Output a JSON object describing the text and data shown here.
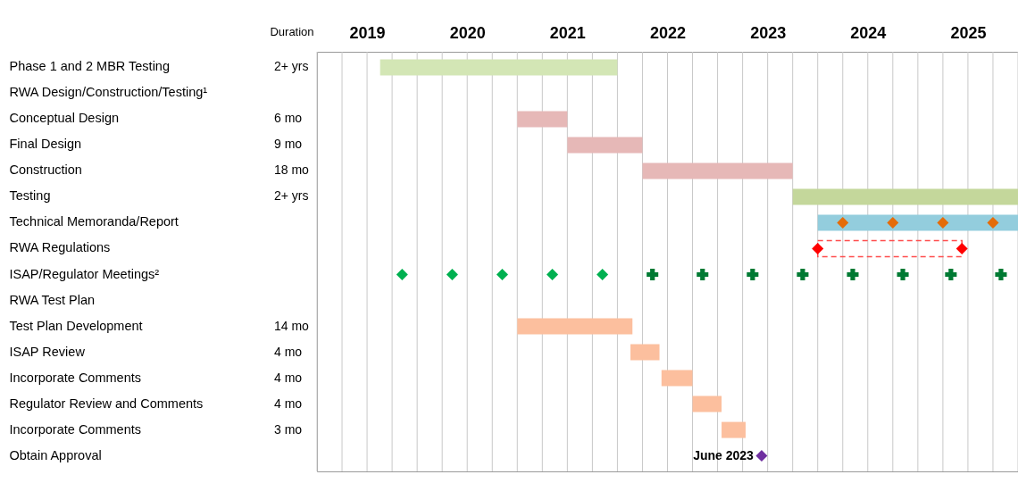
{
  "chart_data": {
    "type": "bar",
    "orientation": "horizontal",
    "categories": [
      "Phase 1 and 2 MBR Testing",
      "RWA Design/Construction/Testing¹",
      "Conceptual Design",
      "Final Design",
      "Construction",
      "Testing",
      "Technical Memoranda/Report",
      "RWA Regulations",
      "ISAP/Regulator Meetings²",
      "RWA Test Plan",
      "Test Plan Development",
      "ISAP Review",
      "Incorporate Comments",
      "Regulator Review and Comments",
      "Incorporate Comments",
      "Obtain Approval"
    ],
    "series": [
      {
        "colors": [
          "#d3e6b5",
          null,
          "#e6b8b7",
          "#e6b8b7",
          "#e6b8b7",
          "#c4d79b",
          "#93cddd",
          null,
          null,
          null,
          "#fcbf9e",
          "#fcbf9e",
          "#fcbf9e",
          "#fcbf9e",
          "#fcbf9e",
          null
        ],
        "values": [
          2.37,
          null,
          0.5,
          0.75,
          1.5,
          2.25,
          2.0,
          null,
          null,
          null,
          1.15,
          0.29,
          0.31,
          0.29,
          0.24,
          null
        ],
        "base": [
          2019.63,
          null,
          2021.0,
          2021.5,
          2022.25,
          2023.75,
          2024.0,
          null,
          null,
          null,
          2021.0,
          2022.13,
          2022.44,
          2022.75,
          2023.04,
          null
        ]
      },
      {
        "color": "#ff4d4d",
        "line_style": "dashed",
        "values": [
          null,
          null,
          null,
          null,
          null,
          null,
          null,
          1.44,
          null,
          null,
          null,
          null,
          null,
          null,
          null,
          null
        ],
        "base": [
          null,
          null,
          null,
          null,
          null,
          null,
          null,
          2024.0,
          null,
          null,
          null,
          null,
          null,
          null,
          null,
          null
        ]
      },
      {
        "type": "scatter",
        "marker": "diamond",
        "colors": [
          null,
          null,
          null,
          null,
          null,
          null,
          "#e46c0a",
          "#ff0000",
          "#00b050",
          null,
          null,
          null,
          null,
          null,
          null,
          "#7030a0"
        ],
        "values": [
          null,
          null,
          null,
          null,
          null,
          null,
          2024.25,
          2024.0,
          2019.85,
          null,
          null,
          null,
          null,
          null,
          null,
          2023.44
        ]
      },
      {
        "type": "scatter",
        "marker": "diamond",
        "colors": [
          null,
          null,
          null,
          null,
          null,
          null,
          "#e46c0a",
          "#ff0000",
          "#00b050",
          null,
          null,
          null,
          null,
          null,
          null,
          null
        ],
        "values": [
          null,
          null,
          null,
          null,
          null,
          null,
          2024.75,
          2025.44,
          2020.35,
          null,
          null,
          null,
          null,
          null,
          null,
          null
        ]
      },
      {
        "type": "scatter",
        "marker": "diamond",
        "colors": [
          null,
          null,
          null,
          null,
          null,
          null,
          "#e46c0a",
          null,
          "#00b050",
          null,
          null,
          null,
          null,
          null,
          null,
          null
        ],
        "values": [
          null,
          null,
          null,
          null,
          null,
          null,
          2025.25,
          null,
          2020.85,
          null,
          null,
          null,
          null,
          null,
          null,
          null
        ]
      },
      {
        "type": "scatter",
        "marker": "diamond",
        "colors": [
          null,
          null,
          null,
          null,
          null,
          null,
          "#e46c0a",
          null,
          "#00b050",
          null,
          null,
          null,
          null,
          null,
          null,
          null
        ],
        "values": [
          null,
          null,
          null,
          null,
          null,
          null,
          2025.75,
          null,
          2021.35,
          null,
          null,
          null,
          null,
          null,
          null,
          null
        ]
      },
      {
        "type": "scatter",
        "marker": "diamond",
        "color": "#00b050",
        "values": [
          null,
          null,
          null,
          null,
          null,
          null,
          null,
          null,
          2021.85,
          null,
          null,
          null,
          null,
          null,
          null,
          null
        ]
      },
      {
        "type": "scatter",
        "marker": "cross",
        "color": "#007a33",
        "values": [
          null,
          null,
          null,
          null,
          null,
          null,
          null,
          null,
          2022.35,
          null,
          null,
          null,
          null,
          null,
          null,
          null
        ]
      },
      {
        "type": "scatter",
        "marker": "cross",
        "color": "#007a33",
        "values": [
          null,
          null,
          null,
          null,
          null,
          null,
          null,
          null,
          2022.85,
          null,
          null,
          null,
          null,
          null,
          null,
          null
        ]
      },
      {
        "type": "scatter",
        "marker": "cross",
        "color": "#007a33",
        "values": [
          null,
          null,
          null,
          null,
          null,
          null,
          null,
          null,
          2023.35,
          null,
          null,
          null,
          null,
          null,
          null,
          null
        ]
      },
      {
        "type": "scatter",
        "marker": "cross",
        "color": "#007a33",
        "values": [
          null,
          null,
          null,
          null,
          null,
          null,
          null,
          null,
          2023.85,
          null,
          null,
          null,
          null,
          null,
          null,
          null
        ]
      },
      {
        "type": "scatter",
        "marker": "cross",
        "color": "#007a33",
        "values": [
          null,
          null,
          null,
          null,
          null,
          null,
          null,
          null,
          2024.35,
          null,
          null,
          null,
          null,
          null,
          null,
          null
        ]
      },
      {
        "type": "scatter",
        "marker": "cross",
        "color": "#007a33",
        "values": [
          null,
          null,
          null,
          null,
          null,
          null,
          null,
          null,
          2024.85,
          null,
          null,
          null,
          null,
          null,
          null,
          null
        ]
      },
      {
        "type": "scatter",
        "marker": "cross",
        "color": "#007a33",
        "values": [
          null,
          null,
          null,
          null,
          null,
          null,
          null,
          null,
          2025.33,
          null,
          null,
          null,
          null,
          null,
          null,
          null
        ]
      },
      {
        "type": "scatter",
        "marker": "cross",
        "color": "#007a33",
        "values": [
          null,
          null,
          null,
          null,
          null,
          null,
          null,
          null,
          2025.83,
          null,
          null,
          null,
          null,
          null,
          null,
          null
        ]
      }
    ],
    "y2_categories": [
      "2+ yrs",
      null,
      "6 mo",
      "9 mo",
      "18 mo",
      "2+ yrs",
      null,
      null,
      null,
      null,
      "14 mo",
      "4 mo",
      "4 mo",
      "4 mo",
      "3 mo",
      null
    ],
    "xlim": [
      2019,
      2026
    ],
    "xticks": [
      {
        "value": 2019,
        "label": null
      },
      {
        "value": 2019.25,
        "label": null
      },
      {
        "value": 2019.5,
        "label": "2019"
      },
      {
        "value": 2019.75,
        "label": null
      },
      {
        "value": 2020,
        "label": null
      },
      {
        "value": 2020.25,
        "label": null
      },
      {
        "value": 2020.5,
        "label": "2020"
      },
      {
        "value": 2020.75,
        "label": null
      },
      {
        "value": 2021,
        "label": null
      },
      {
        "value": 2021.25,
        "label": null
      },
      {
        "value": 2021.5,
        "label": "2021"
      },
      {
        "value": 2021.75,
        "label": null
      },
      {
        "value": 2022,
        "label": null
      },
      {
        "value": 2022.25,
        "label": null
      },
      {
        "value": 2022.5,
        "label": "2022"
      },
      {
        "value": 2022.75,
        "label": null
      },
      {
        "value": 2023,
        "label": null
      },
      {
        "value": 2023.25,
        "label": null
      },
      {
        "value": 2023.5,
        "label": "2023"
      },
      {
        "value": 2023.75,
        "label": null
      },
      {
        "value": 2024,
        "label": null
      },
      {
        "value": 2024.25,
        "label": null
      },
      {
        "value": 2024.5,
        "label": "2024"
      },
      {
        "value": 2024.75,
        "label": null
      },
      {
        "value": 2025,
        "label": null
      },
      {
        "value": 2025.25,
        "label": null
      },
      {
        "value": 2025.5,
        "label": "2025"
      },
      {
        "value": 2025.75,
        "label": null
      },
      {
        "value": 2026,
        "label": null
      }
    ],
    "grid": "x",
    "annotations": [
      "Duration",
      {
        "text": "June 2023",
        "x": 2023.44,
        "y": "Obtain Approval"
      }
    ]
  }
}
